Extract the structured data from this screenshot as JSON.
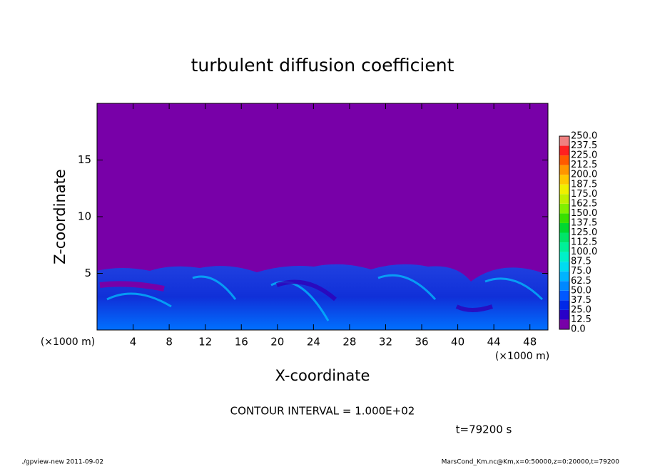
{
  "chart_data": {
    "type": "contour",
    "title": "turbulent diffusion coefficient",
    "xlabel": "X-coordinate",
    "ylabel": "Z-coordinate",
    "xunit": "(×1000 m)",
    "xlim": [
      0,
      50
    ],
    "ylim": [
      0,
      20
    ],
    "xticks": [
      4,
      8,
      12,
      16,
      20,
      24,
      28,
      32,
      36,
      40,
      44,
      48
    ],
    "yticks": [
      5,
      10,
      15
    ],
    "levels": [
      {
        "value": 0,
        "label": "0.0"
      },
      12.5,
      {
        "value": 25,
        "label": "25.0"
      },
      37.5,
      {
        "value": 50,
        "label": "50.0"
      },
      62.5,
      {
        "value": 75,
        "label": "75.0"
      },
      87.5,
      {
        "value": 100,
        "label": "100.0"
      },
      112.5,
      {
        "value": 125,
        "label": "125.0"
      },
      137.5,
      {
        "value": 150,
        "label": "150.0"
      },
      162.5,
      {
        "value": 175,
        "label": "175.0"
      },
      187.5,
      {
        "value": 200,
        "label": "200.0"
      },
      212.5,
      {
        "value": 225,
        "label": "225.0"
      },
      237.5,
      {
        "value": 250,
        "label": "250.0"
      }
    ],
    "colors": [
      "#7800a8",
      "#2800c8",
      "#0028e8",
      "#0058ff",
      "#0088ff",
      "#00b4ff",
      "#00dcf0",
      "#00f0c8",
      "#00f098",
      "#00e468",
      "#00d830",
      "#38e000",
      "#80f000",
      "#c0f000",
      "#f0f000",
      "#ffc800",
      "#ff9600",
      "#ff5a00",
      "#ff2020",
      "#f08080"
    ],
    "contour_interval": "CONTOUR INTERVAL = 1.000E+02",
    "time": "t=79200 s",
    "footer_left": "./gpview-new  2011-09-02",
    "footer_right": "MarsCond_Km.nc@Km,x=0:50000,z=0:20000,t=79200"
  }
}
